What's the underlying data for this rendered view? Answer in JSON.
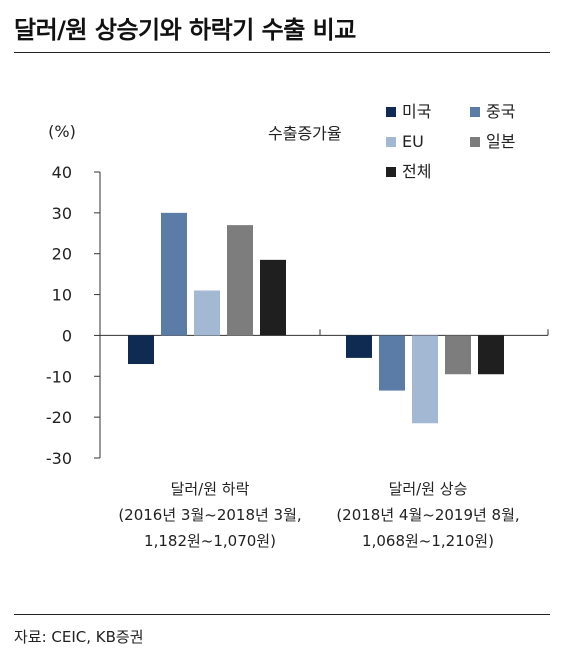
{
  "title": "달러/원 상승기와 하락기 수출 비교",
  "source": "자료: CEIC, KB증권",
  "chart_data": {
    "type": "bar",
    "unit_label": "(%)",
    "legend_title": "수출증가율",
    "legend_placement": "top-right",
    "ylim": [
      -30,
      40
    ],
    "yticks": [
      40,
      30,
      20,
      10,
      0,
      -10,
      -20,
      -30
    ],
    "categories": [
      [
        "달러/원 하락",
        "(2016년 3월~2018년 3월,",
        "1,182원~1,070원)"
      ],
      [
        "달러/원 상승",
        "(2018년 4월~2019년 8월,",
        "1,068원~1,210원)"
      ]
    ],
    "series": [
      {
        "name": "미국",
        "color": "#0f2b52",
        "values": [
          -7,
          -5.5
        ]
      },
      {
        "name": "중국",
        "color": "#5b7ca6",
        "values": [
          30,
          -13.5
        ]
      },
      {
        "name": "EU",
        "color": "#a3b8d3",
        "values": [
          11,
          -21.5
        ]
      },
      {
        "name": "일본",
        "color": "#7d7d7d",
        "values": [
          27,
          -9.5
        ]
      },
      {
        "name": "전체",
        "color": "#1f1f1f",
        "values": [
          18.5,
          -9.5
        ]
      }
    ]
  }
}
